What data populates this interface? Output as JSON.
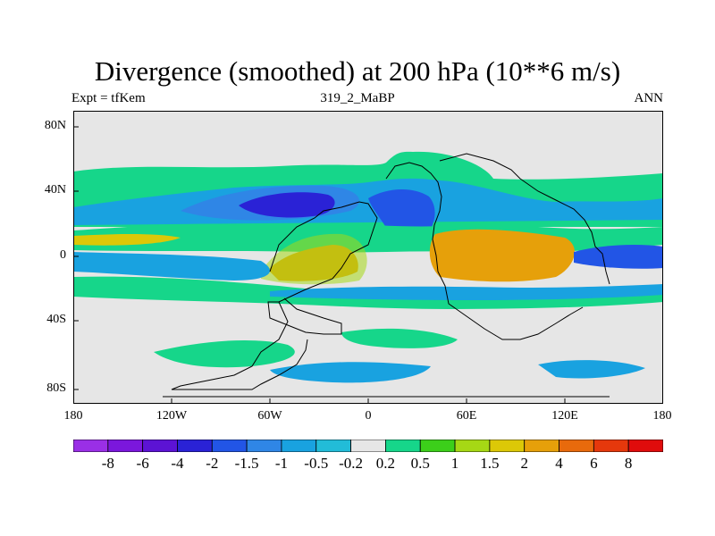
{
  "title": "Divergence (smoothed) at 200 hPa (10**6 m/s)",
  "subtitle_left": "Expt = tfKem",
  "subtitle_center": "319_2_MaBP",
  "subtitle_right": "ANN",
  "y_ticks": [
    "80N",
    "40N",
    "0",
    "40S",
    "80S"
  ],
  "x_ticks": [
    "180",
    "120W",
    "60W",
    "0",
    "60E",
    "120E",
    "180"
  ],
  "colorbar": {
    "labels": [
      "-8",
      "-6",
      "-4",
      "-2",
      "-1.5",
      "-1",
      "-0.5",
      "-0.2",
      "0.2",
      "0.5",
      "1",
      "1.5",
      "2",
      "4",
      "6",
      "8"
    ],
    "colors": [
      "#9a2fe6",
      "#7b17dc",
      "#5c13d4",
      "#2a22d6",
      "#2255e6",
      "#2f86e6",
      "#19a2e0",
      "#22bcd8",
      "#e6e6e6",
      "#16d68a",
      "#3ccf1a",
      "#a6d815",
      "#dcc807",
      "#e6a00a",
      "#e86a0c",
      "#e5380c",
      "#e00c0c"
    ]
  },
  "chart_data": {
    "type": "heatmap",
    "variable": "Divergence (smoothed)",
    "level": "200 hPa",
    "units": "10**6 m/s",
    "x_range": [
      -180,
      180
    ],
    "y_range": [
      -90,
      90
    ],
    "contour_levels": [
      -8,
      -6,
      -4,
      -2,
      -1.5,
      -1,
      -0.5,
      -0.2,
      0.2,
      0.5,
      1,
      1.5,
      2,
      4,
      6,
      8
    ],
    "grid": false
  }
}
